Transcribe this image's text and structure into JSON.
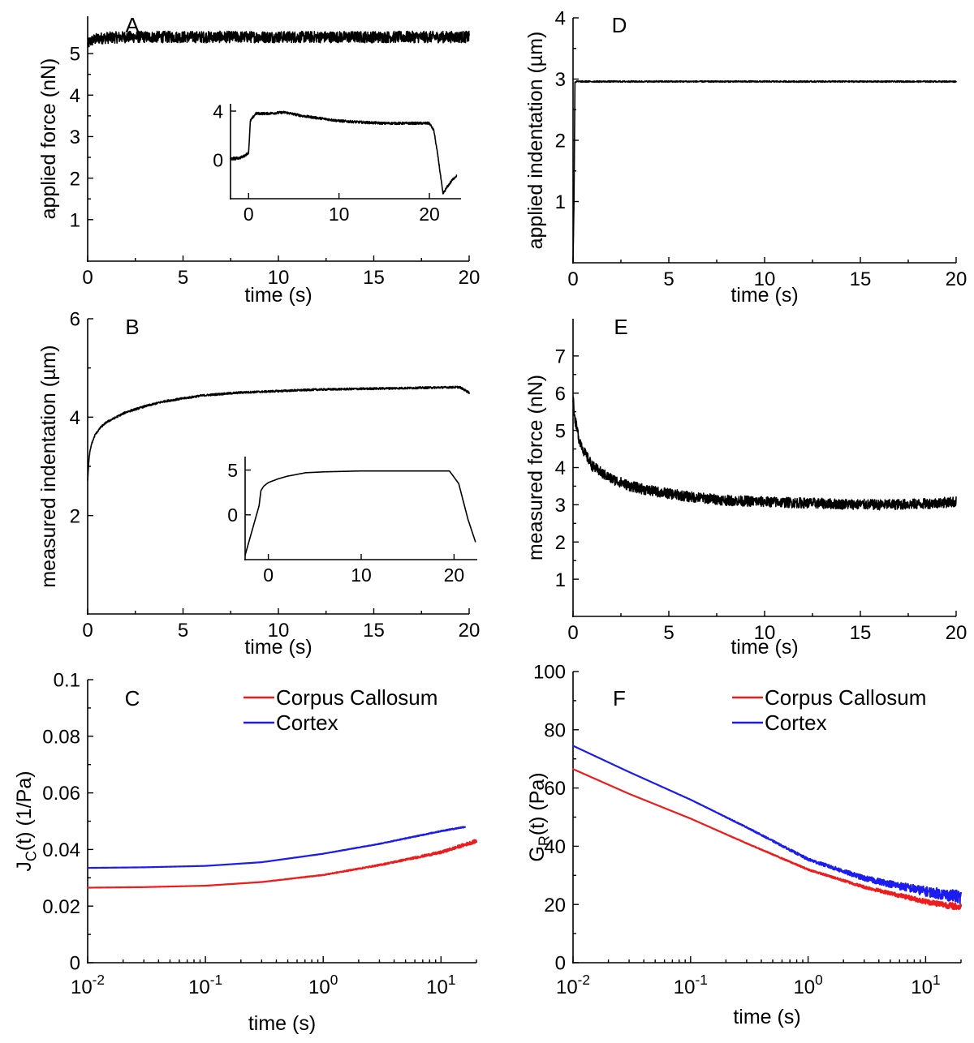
{
  "chart_data": [
    {
      "panel": "A",
      "type": "line",
      "xlabel": "time (s)",
      "ylabel": "applied force (nN)",
      "xlim": [
        0,
        20
      ],
      "ylim": [
        0,
        5.9
      ],
      "xticks": [
        0,
        5,
        10,
        15,
        20
      ],
      "yticks": [
        1,
        2,
        3,
        4,
        5
      ],
      "series": [
        {
          "color": "#000000",
          "noise": 0.14,
          "x": [
            0,
            0.1,
            0.3,
            0.6,
            1,
            2,
            5,
            10,
            15,
            20
          ],
          "y": [
            5.2,
            5.28,
            5.33,
            5.37,
            5.38,
            5.4,
            5.4,
            5.4,
            5.4,
            5.4
          ]
        }
      ],
      "inset": {
        "xlim": [
          -2,
          23.5
        ],
        "ylim": [
          -3.2,
          4.6
        ],
        "xticks": [
          0,
          10,
          20
        ],
        "yticks": [
          0,
          4
        ],
        "series": [
          {
            "color": "#000000",
            "noise": 0.1,
            "x": [
              -2,
              -1,
              -0.5,
              0,
              0.2,
              0.8,
              2,
              4,
              6,
              8,
              10,
              12,
              15,
              18,
              20,
              20.5,
              21,
              21.5,
              22,
              22.6,
              23
            ],
            "y": [
              0.1,
              0.15,
              0.3,
              0.6,
              3.2,
              3.8,
              3.8,
              3.9,
              3.6,
              3.4,
              3.2,
              3.1,
              3.0,
              3.0,
              3.0,
              2.4,
              0.0,
              -2.8,
              -2.2,
              -1.6,
              -1.3
            ]
          }
        ]
      }
    },
    {
      "panel": "B",
      "type": "line",
      "xlabel": "time (s)",
      "ylabel": "measured indentation (µm)",
      "xlim": [
        0,
        20
      ],
      "ylim": [
        0,
        6
      ],
      "xticks": [
        0,
        5,
        10,
        15,
        20
      ],
      "yticks": [
        2,
        4,
        6
      ],
      "series": [
        {
          "color": "#000000",
          "noise": 0.02,
          "x": [
            0,
            0.05,
            0.1,
            0.2,
            0.4,
            0.7,
            1,
            1.5,
            2,
            3,
            4,
            5,
            6,
            8,
            10,
            12,
            15,
            18,
            19.5,
            20
          ],
          "y": [
            2.7,
            3.05,
            3.25,
            3.45,
            3.65,
            3.8,
            3.9,
            4.0,
            4.1,
            4.22,
            4.32,
            4.38,
            4.44,
            4.5,
            4.53,
            4.56,
            4.58,
            4.6,
            4.61,
            4.5
          ]
        }
      ],
      "inset": {
        "xlim": [
          -2.5,
          22.5
        ],
        "ylim": [
          -5,
          6.5
        ],
        "xticks": [
          0,
          10,
          20
        ],
        "yticks": [
          0,
          5
        ],
        "series": [
          {
            "color": "#000000",
            "noise": 0,
            "x": [
              -2.5,
              -1,
              -0.8,
              -0.5,
              0,
              1,
              2,
              4,
              6,
              8,
              10,
              12,
              15,
              18,
              19.5,
              20.5,
              21.5,
              22.3
            ],
            "y": [
              -4.5,
              1.0,
              2.7,
              3.2,
              3.6,
              4.0,
              4.3,
              4.7,
              4.8,
              4.85,
              4.9,
              4.9,
              4.9,
              4.9,
              4.9,
              3.5,
              -0.5,
              -3.0
            ]
          }
        ]
      }
    },
    {
      "panel": "C",
      "type": "line",
      "xlabel": "time (s)",
      "ylabel": "J_C(t) (1/Pa)",
      "xscale": "log",
      "xlim": [
        0.01,
        20
      ],
      "ylim": [
        0,
        0.1
      ],
      "xticks": [
        "10^-2",
        "10^-1",
        "10^0",
        "10^1"
      ],
      "yticks": [
        0,
        0.02,
        0.04,
        0.06,
        0.08,
        0.1
      ],
      "legend_position": "top-right",
      "series": [
        {
          "name": "Corpus Callosum",
          "color": "#ee1c1c",
          "noise": 0.0006,
          "x": [
            0.01,
            0.03,
            0.1,
            0.3,
            1,
            3,
            10,
            20
          ],
          "y": [
            0.0265,
            0.0267,
            0.0272,
            0.0285,
            0.031,
            0.0345,
            0.039,
            0.043
          ]
        },
        {
          "name": "Cortex",
          "color": "#1c1cee",
          "noise": 0.0002,
          "x": [
            0.01,
            0.03,
            0.1,
            0.3,
            1,
            3,
            10,
            16
          ],
          "y": [
            0.0335,
            0.0337,
            0.0342,
            0.0355,
            0.0385,
            0.042,
            0.0465,
            0.048
          ]
        }
      ]
    },
    {
      "panel": "D",
      "type": "line",
      "xlabel": "time (s)",
      "ylabel": "applied indentation (µm)",
      "xlim": [
        0,
        20
      ],
      "ylim": [
        0,
        4
      ],
      "xticks": [
        0,
        5,
        10,
        15,
        20
      ],
      "yticks": [
        1,
        2,
        3,
        4
      ],
      "series": [
        {
          "color": "#000000",
          "noise": 0.012,
          "x": [
            0,
            0.05,
            0.1,
            0.2,
            1,
            5,
            10,
            15,
            20
          ],
          "y": [
            0,
            1.0,
            2.95,
            2.96,
            2.96,
            2.96,
            2.96,
            2.96,
            2.96
          ]
        }
      ]
    },
    {
      "panel": "E",
      "type": "line",
      "xlabel": "time (s)",
      "ylabel": "measured force (nN)",
      "xlim": [
        0,
        20
      ],
      "ylim": [
        0,
        8
      ],
      "xticks": [
        0,
        5,
        10,
        15,
        20
      ],
      "yticks": [
        1,
        2,
        3,
        4,
        5,
        6,
        7
      ],
      "series": [
        {
          "color": "#000000",
          "noise": 0.14,
          "x": [
            0,
            0.1,
            0.3,
            0.6,
            1,
            1.5,
            2,
            3,
            4,
            5,
            6,
            8,
            10,
            12,
            14,
            16,
            18,
            20
          ],
          "y": [
            5.9,
            5.3,
            4.8,
            4.4,
            4.05,
            3.85,
            3.7,
            3.5,
            3.38,
            3.3,
            3.22,
            3.12,
            3.08,
            3.05,
            3.02,
            3.0,
            3.02,
            3.08
          ]
        }
      ]
    },
    {
      "panel": "F",
      "type": "line",
      "xlabel": "time (s)",
      "ylabel": "G_R(t) (Pa)",
      "xscale": "log",
      "xlim": [
        0.01,
        20
      ],
      "ylim": [
        0,
        100
      ],
      "xticks": [
        "10^-2",
        "10^-1",
        "10^0",
        "10^1"
      ],
      "yticks": [
        0,
        20,
        40,
        60,
        80,
        100
      ],
      "legend_position": "top-right",
      "series": [
        {
          "name": "Corpus Callosum",
          "color": "#ee1c1c",
          "noise": 1.2,
          "x": [
            0.01,
            0.03,
            0.1,
            0.3,
            1,
            3,
            10,
            20
          ],
          "y": [
            66.5,
            58,
            49.5,
            41,
            32,
            26,
            21,
            19
          ]
        },
        {
          "name": "Cortex",
          "color": "#1c1cee",
          "noise": 2.2,
          "x": [
            0.01,
            0.03,
            0.1,
            0.3,
            1,
            3,
            10,
            20
          ],
          "y": [
            74.5,
            65.5,
            56,
            46.5,
            35.5,
            29,
            24.5,
            22.5
          ]
        }
      ]
    }
  ]
}
